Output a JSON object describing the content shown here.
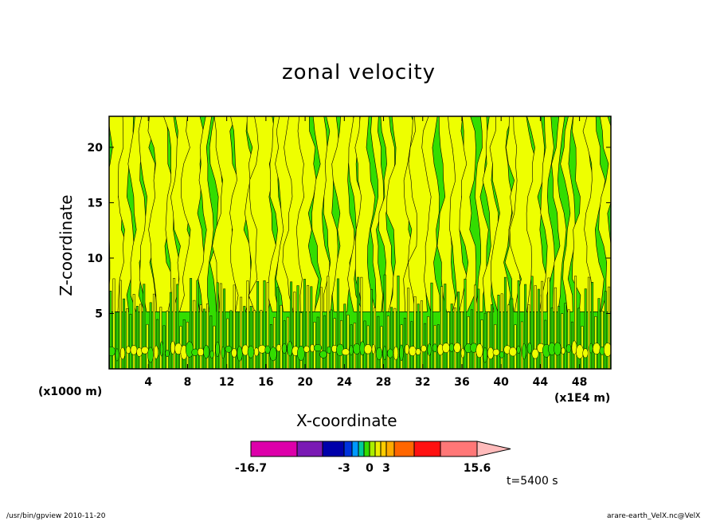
{
  "chart_data": {
    "type": "heatmap",
    "title": "zonal velocity",
    "xlabel": "X-coordinate",
    "ylabel": "Z-coordinate",
    "x_unit_left": "(x1000 m)",
    "x_unit_right": "(x1E4 m)",
    "x_ticks": [
      "4",
      "8",
      "12",
      "16",
      "20",
      "24",
      "28",
      "32",
      "36",
      "40",
      "44",
      "48"
    ],
    "y_ticks": [
      "5",
      "10",
      "15",
      "20"
    ],
    "xlim": [
      0,
      51.2
    ],
    "ylim": [
      0,
      22.8
    ],
    "colorbar": {
      "colors": [
        "#dd00aa",
        "#7a1ab4",
        "#0000aa",
        "#0033dd",
        "#0099ff",
        "#00cc99",
        "#33dd00",
        "#aaee00",
        "#eeee00",
        "#ffcc00",
        "#ffaa00",
        "#ff6600",
        "#ff1111",
        "#ff7777",
        "#ffbbbb"
      ],
      "labels": [
        "-16.7",
        "-3",
        "0",
        "3",
        "15.6"
      ],
      "min": -16.7,
      "max": 15.6
    },
    "field_colors": {
      "negative": "#33dd00",
      "positive": "#eeff00"
    },
    "time_label": "t=5400 s"
  },
  "footer": {
    "left": "/usr/bin/gpview   2010-11-20",
    "right": "arare-earth_VelX.nc@VelX"
  }
}
